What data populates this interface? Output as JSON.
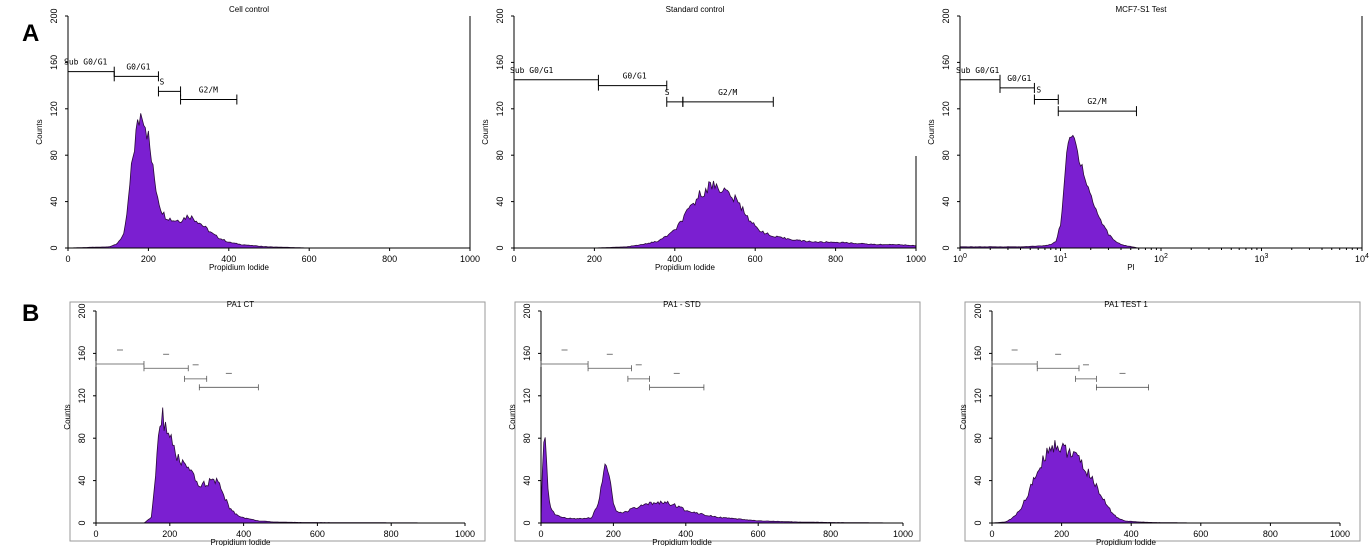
{
  "row_labels": [
    "A",
    "B"
  ],
  "colors": {
    "histogram_fill": "#7b1fd1",
    "histogram_edge": "#2a0a3a"
  },
  "chart_data": [
    {
      "id": "A1",
      "type": "area",
      "title": "Cell control",
      "xlabel": "Propidium Iodide",
      "ylabel": "Counts",
      "xscale": "linear",
      "xlim": [
        0,
        1000
      ],
      "ylim": [
        0,
        200
      ],
      "xticks": [
        "0",
        "200",
        "400",
        "600",
        "800",
        "1000"
      ],
      "yticks": [
        "0",
        "40",
        "80",
        "120",
        "160",
        "200"
      ],
      "gates": [
        {
          "label": "Sub G0/G1",
          "x1": 0,
          "x2": 115,
          "y": 152
        },
        {
          "label": "G0/G1",
          "x1": 115,
          "x2": 225,
          "y": 148
        },
        {
          "label": "S",
          "x1": 225,
          "x2": 280,
          "y": 135
        },
        {
          "label": "G2/M",
          "x1": 280,
          "x2": 420,
          "y": 128
        }
      ],
      "x": [
        0,
        100,
        120,
        140,
        150,
        160,
        170,
        180,
        185,
        190,
        200,
        210,
        220,
        230,
        240,
        260,
        280,
        300,
        320,
        340,
        360,
        380,
        400,
        430,
        460,
        500,
        550,
        600,
        700,
        800,
        1000
      ],
      "y": [
        0,
        1,
        3,
        12,
        40,
        75,
        100,
        115,
        120,
        112,
        95,
        70,
        50,
        35,
        28,
        24,
        24,
        28,
        24,
        18,
        12,
        8,
        5,
        3,
        2,
        1,
        0.5,
        0,
        0,
        0,
        0
      ]
    },
    {
      "id": "A2",
      "type": "area",
      "title": "Standard control",
      "xlabel": "Propidium Iodide",
      "ylabel": "Counts",
      "xscale": "linear",
      "xlim": [
        0,
        1000
      ],
      "ylim": [
        0,
        200
      ],
      "xticks": [
        "0",
        "200",
        "400",
        "600",
        "800",
        "1000"
      ],
      "yticks": [
        "0",
        "40",
        "80",
        "120",
        "160",
        "200"
      ],
      "gates": [
        {
          "label": "Sub G0/G1",
          "x1": 0,
          "x2": 210,
          "y": 145
        },
        {
          "label": "G0/G1",
          "x1": 210,
          "x2": 380,
          "y": 140
        },
        {
          "label": "S",
          "x1": 380,
          "x2": 420,
          "y": 126
        },
        {
          "label": "G2/M",
          "x1": 420,
          "x2": 645,
          "y": 126
        }
      ],
      "x": [
        0,
        200,
        280,
        320,
        360,
        400,
        430,
        460,
        480,
        500,
        520,
        540,
        560,
        580,
        600,
        640,
        680,
        720,
        760,
        800,
        850,
        900,
        950,
        1000
      ],
      "y": [
        0,
        0,
        1,
        3,
        6,
        15,
        30,
        45,
        52,
        55,
        50,
        45,
        38,
        28,
        18,
        10,
        8,
        6,
        5,
        5,
        4,
        3,
        3,
        2
      ]
    },
    {
      "id": "A3",
      "type": "area",
      "title": "MCF7-S1 Test",
      "xlabel": "PI",
      "ylabel": "Counts",
      "xscale": "log",
      "xlim": [
        1,
        10000
      ],
      "ylim": [
        0,
        200
      ],
      "xticks": [
        "10^0",
        "10^1",
        "10^2",
        "10^3",
        "10^4"
      ],
      "yticks": [
        "0",
        "40",
        "80",
        "120",
        "160",
        "200"
      ],
      "gates": [
        {
          "label": "Sub G0/G1",
          "x1": 1,
          "x2": 2.5,
          "y": 145
        },
        {
          "label": "G0/G1",
          "x1": 2.5,
          "x2": 5.5,
          "y": 138
        },
        {
          "label": "S",
          "x1": 5.5,
          "x2": 9.5,
          "y": 128
        },
        {
          "label": "G2/M",
          "x1": 9.5,
          "x2": 57,
          "y": 118
        }
      ],
      "x": [
        1,
        4,
        7,
        8,
        9,
        10,
        11,
        12,
        13,
        14,
        16,
        18,
        20,
        22,
        25,
        30,
        35,
        40,
        45,
        55,
        60
      ],
      "y": [
        1,
        1,
        2,
        3,
        6,
        20,
        60,
        90,
        97,
        90,
        75,
        58,
        45,
        35,
        24,
        12,
        6,
        3,
        2,
        0.5,
        0
      ]
    },
    {
      "id": "B1",
      "type": "area",
      "title": "PA1 CT",
      "xlabel": "Propidium Iodide",
      "ylabel": "Counts",
      "xscale": "linear",
      "xlim": [
        0,
        1000
      ],
      "ylim": [
        0,
        200
      ],
      "xticks": [
        "0",
        "200",
        "400",
        "600",
        "800",
        "1000"
      ],
      "yticks": [
        "0",
        "40",
        "80",
        "120",
        "160",
        "200"
      ],
      "gates": [
        {
          "x1": 0,
          "x2": 130,
          "y": 150
        },
        {
          "x1": 130,
          "x2": 250,
          "y": 146
        },
        {
          "x1": 240,
          "x2": 300,
          "y": 136
        },
        {
          "x1": 280,
          "x2": 440,
          "y": 128
        }
      ],
      "x": [
        0,
        130,
        150,
        160,
        170,
        180,
        190,
        200,
        210,
        220,
        240,
        260,
        280,
        300,
        320,
        330,
        340,
        360,
        380,
        400,
        440,
        480,
        550,
        1000
      ],
      "y": [
        0,
        0,
        5,
        40,
        85,
        100,
        90,
        80,
        70,
        62,
        55,
        45,
        35,
        38,
        40,
        38,
        32,
        15,
        8,
        5,
        2,
        1,
        0.5,
        0
      ]
    },
    {
      "id": "B2",
      "type": "area",
      "title": "PA1 - STD",
      "xlabel": "Propidium lodide",
      "ylabel": "Counts",
      "xscale": "linear",
      "xlim": [
        0,
        1000
      ],
      "ylim": [
        0,
        200
      ],
      "xticks": [
        "0",
        "200",
        "400",
        "600",
        "800",
        "1000"
      ],
      "yticks": [
        "0",
        "40",
        "80",
        "120",
        "160",
        "200"
      ],
      "gates": [
        {
          "x1": 0,
          "x2": 130,
          "y": 150
        },
        {
          "x1": 130,
          "x2": 250,
          "y": 146
        },
        {
          "x1": 240,
          "x2": 300,
          "y": 136
        },
        {
          "x1": 300,
          "x2": 450,
          "y": 128
        }
      ],
      "x": [
        0,
        5,
        10,
        15,
        20,
        30,
        40,
        60,
        100,
        140,
        160,
        170,
        180,
        190,
        200,
        210,
        230,
        260,
        300,
        330,
        360,
        400,
        450,
        500,
        600,
        700,
        800,
        1000
      ],
      "y": [
        5,
        60,
        80,
        60,
        25,
        12,
        8,
        5,
        4,
        5,
        20,
        45,
        55,
        40,
        18,
        10,
        10,
        14,
        18,
        20,
        18,
        12,
        8,
        5,
        2,
        1,
        0.5,
        0
      ]
    },
    {
      "id": "B3",
      "type": "area",
      "title": "PA1 TEST 1",
      "xlabel": "Propidium Iodide",
      "ylabel": "Counts",
      "xscale": "linear",
      "xlim": [
        0,
        1000
      ],
      "ylim": [
        0,
        200
      ],
      "xticks": [
        "0",
        "200",
        "400",
        "600",
        "800",
        "1000"
      ],
      "yticks": [
        "0",
        "40",
        "80",
        "120",
        "160",
        "200"
      ],
      "gates": [
        {
          "x1": 0,
          "x2": 130,
          "y": 150
        },
        {
          "x1": 130,
          "x2": 250,
          "y": 146
        },
        {
          "x1": 240,
          "x2": 300,
          "y": 136
        },
        {
          "x1": 300,
          "x2": 450,
          "y": 128
        }
      ],
      "x": [
        0,
        40,
        60,
        80,
        100,
        120,
        140,
        160,
        180,
        200,
        220,
        240,
        260,
        280,
        300,
        320,
        340,
        360,
        380,
        420,
        460,
        600,
        1000
      ],
      "y": [
        0,
        1,
        5,
        12,
        25,
        40,
        55,
        68,
        75,
        70,
        68,
        62,
        55,
        45,
        35,
        22,
        12,
        5,
        2,
        1,
        0.5,
        0,
        0
      ]
    }
  ]
}
